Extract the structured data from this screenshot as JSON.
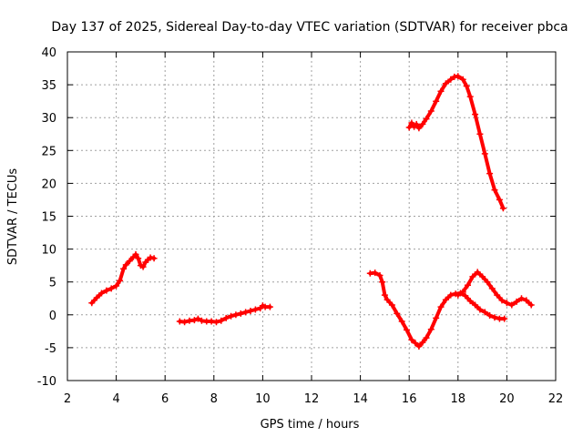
{
  "chart_data": {
    "type": "scatter",
    "title": "Day 137 of 2025, Sidereal Day-to-day VTEC variation (SDTVAR) for receiver pbca",
    "xlabel": "GPS time / hours",
    "ylabel": "SDTVAR / TECUs",
    "xlim": [
      2,
      22
    ],
    "ylim": [
      -10,
      40
    ],
    "xticks": [
      "2",
      "4",
      "6",
      "8",
      "10",
      "12",
      "14",
      "16",
      "18",
      "20",
      "22"
    ],
    "yticks": [
      "-10",
      "-5",
      "0",
      "5",
      "10",
      "15",
      "20",
      "25",
      "30",
      "35",
      "40"
    ],
    "xtick_values": [
      2,
      4,
      6,
      8,
      10,
      12,
      14,
      16,
      18,
      20,
      22
    ],
    "ytick_values": [
      -10,
      -5,
      0,
      5,
      10,
      15,
      20,
      25,
      30,
      35,
      40
    ],
    "grid": true,
    "marker": "plus",
    "color": "#ff0000",
    "series": [
      {
        "name": "segment-1",
        "x": [
          3.0,
          3.2,
          3.4,
          3.6,
          3.8,
          4.0,
          4.15,
          4.3,
          4.4,
          4.55,
          4.7,
          4.8,
          4.9,
          5.0,
          5.1,
          5.2,
          5.3,
          5.4,
          5.55
        ],
        "y": [
          1.8,
          2.6,
          3.3,
          3.7,
          4.0,
          4.4,
          5.2,
          7.0,
          7.6,
          8.2,
          8.8,
          9.2,
          8.6,
          7.5,
          7.3,
          8.0,
          8.4,
          8.7,
          8.6
        ]
      },
      {
        "name": "segment-2",
        "x": [
          6.6,
          6.8,
          7.0,
          7.2,
          7.35,
          7.5,
          7.7,
          7.9,
          8.1,
          8.3,
          8.5,
          8.7,
          8.9,
          9.1,
          9.3,
          9.5,
          9.7,
          9.9,
          10.0,
          10.1,
          10.3
        ],
        "y": [
          -1.0,
          -1.1,
          -0.9,
          -0.8,
          -0.6,
          -0.9,
          -1.0,
          -1.0,
          -1.1,
          -0.9,
          -0.5,
          -0.2,
          0.0,
          0.2,
          0.4,
          0.6,
          0.8,
          1.0,
          1.4,
          1.2,
          1.2
        ]
      },
      {
        "name": "segment-3",
        "x": [
          14.4,
          14.6,
          14.8,
          14.9,
          15.0,
          15.1,
          15.3,
          15.5,
          15.7,
          15.9,
          16.1,
          16.25,
          16.4,
          16.55,
          16.7,
          16.9,
          17.1,
          17.3,
          17.5,
          17.7,
          17.9,
          18.1,
          18.3,
          18.5,
          18.7,
          18.9,
          19.1,
          19.3,
          19.5,
          19.7,
          19.9
        ],
        "y": [
          6.3,
          6.4,
          6.0,
          5.0,
          3.0,
          2.3,
          1.5,
          0.2,
          -1.0,
          -2.3,
          -3.8,
          -4.3,
          -4.8,
          -4.2,
          -3.5,
          -2.2,
          -0.5,
          1.2,
          2.3,
          3.0,
          3.2,
          3.3,
          2.9,
          2.1,
          1.5,
          0.8,
          0.4,
          -0.1,
          -0.4,
          -0.6,
          -0.6
        ]
      },
      {
        "name": "segment-4",
        "x": [
          18.0,
          18.2,
          18.4,
          18.6,
          18.8,
          19.0,
          19.2,
          19.4,
          19.6,
          19.8,
          20.0,
          20.2,
          20.4,
          20.6,
          20.8,
          21.0
        ],
        "y": [
          3.0,
          3.5,
          4.5,
          5.8,
          6.5,
          5.8,
          5.0,
          4.0,
          3.0,
          2.2,
          1.8,
          1.5,
          2.0,
          2.5,
          2.2,
          1.5
        ]
      },
      {
        "name": "segment-5",
        "x": [
          16.0,
          16.1,
          16.2,
          16.3,
          16.4,
          16.55,
          16.7,
          16.9,
          17.1,
          17.3,
          17.5,
          17.7,
          17.85,
          18.0,
          18.2,
          18.35,
          18.5,
          18.7,
          18.9,
          19.1,
          19.3,
          19.5,
          19.7,
          19.85
        ],
        "y": [
          28.5,
          29.2,
          28.6,
          29.0,
          28.4,
          29.0,
          29.8,
          31.0,
          32.5,
          34.0,
          35.2,
          35.8,
          36.2,
          36.3,
          35.8,
          34.8,
          33.2,
          30.5,
          27.5,
          24.5,
          21.5,
          19.0,
          17.5,
          16.2
        ]
      }
    ]
  }
}
